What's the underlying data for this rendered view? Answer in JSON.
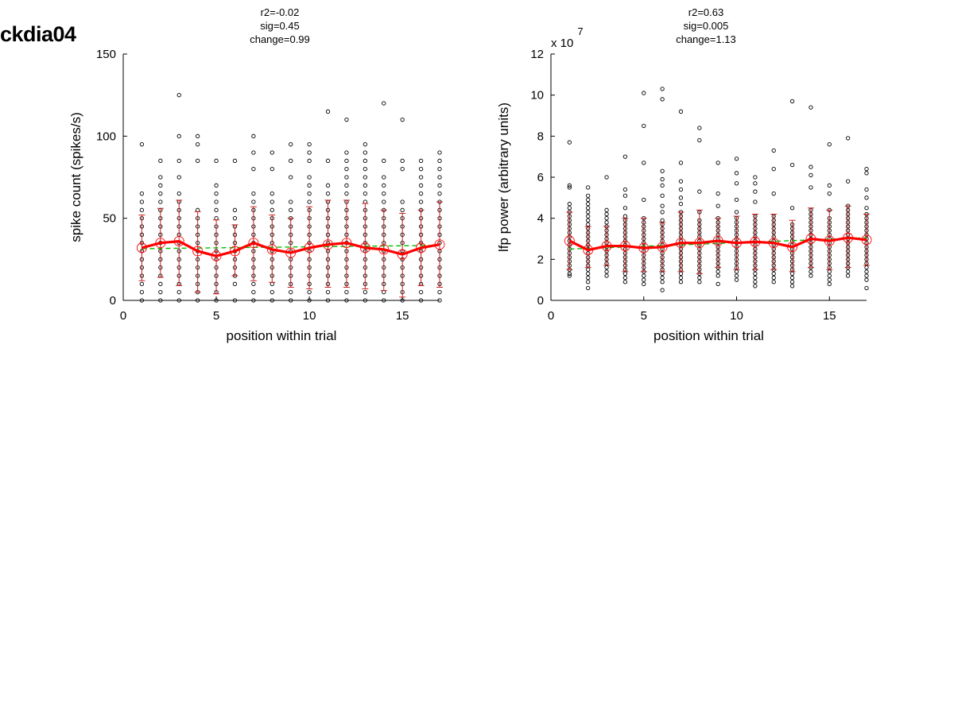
{
  "figure_title": "ckdia04",
  "chart_data": [
    {
      "type": "scatter",
      "stats": [
        "r2=-0.02",
        "sig=0.45",
        "change=0.99"
      ],
      "xlabel": "position within trial",
      "ylabel": "spike count (spikes/s)",
      "exponent_label": "",
      "xlim": [
        0,
        17
      ],
      "ylim": [
        0,
        150
      ],
      "xticks": [
        0,
        5,
        10,
        15
      ],
      "yticks": [
        0,
        50,
        100,
        150
      ],
      "grid": false,
      "colors": {
        "points": "#000000",
        "mean": "#ff0000",
        "errorbar": "#c81e1e",
        "fit": "#00c000"
      },
      "x": [
        1,
        2,
        3,
        4,
        5,
        6,
        7,
        8,
        9,
        10,
        11,
        12,
        13,
        14,
        15,
        16,
        17
      ],
      "mean": [
        32,
        35,
        36,
        30,
        27,
        30,
        35,
        31,
        29,
        32,
        34,
        35,
        32,
        31,
        28,
        32,
        34
      ],
      "sd_low": [
        12,
        14,
        9,
        5,
        4,
        15,
        12,
        11,
        8,
        7,
        8,
        8,
        7,
        6,
        2,
        9,
        8
      ],
      "sd_high": [
        52,
        56,
        61,
        54,
        49,
        46,
        57,
        52,
        50,
        57,
        61,
        61,
        59,
        55,
        53,
        55,
        60
      ],
      "fit": {
        "start": 31.5,
        "end": 33.5
      },
      "points": [
        [
          1,
          [
            0,
            5,
            10,
            15,
            20,
            25,
            30,
            35,
            40,
            45,
            50,
            55,
            60,
            65,
            95
          ]
        ],
        [
          2,
          [
            0,
            5,
            10,
            15,
            20,
            25,
            30,
            35,
            40,
            45,
            50,
            55,
            60,
            65,
            70,
            75,
            85
          ]
        ],
        [
          3,
          [
            0,
            5,
            10,
            15,
            20,
            25,
            30,
            35,
            40,
            45,
            50,
            55,
            60,
            65,
            75,
            85,
            100,
            125
          ]
        ],
        [
          4,
          [
            0,
            5,
            10,
            15,
            20,
            25,
            30,
            35,
            40,
            45,
            50,
            55,
            85,
            95,
            100
          ]
        ],
        [
          5,
          [
            0,
            5,
            10,
            15,
            20,
            25,
            30,
            35,
            40,
            45,
            50,
            55,
            60,
            65,
            70,
            85
          ]
        ],
        [
          6,
          [
            0,
            10,
            15,
            20,
            25,
            30,
            35,
            40,
            45,
            50,
            55,
            85
          ]
        ],
        [
          7,
          [
            0,
            5,
            10,
            15,
            20,
            25,
            30,
            35,
            40,
            45,
            50,
            55,
            60,
            65,
            80,
            90,
            100
          ]
        ],
        [
          8,
          [
            0,
            5,
            10,
            15,
            20,
            25,
            30,
            35,
            40,
            45,
            50,
            55,
            60,
            65,
            80,
            90
          ]
        ],
        [
          9,
          [
            0,
            5,
            10,
            15,
            20,
            25,
            30,
            35,
            40,
            45,
            50,
            55,
            60,
            75,
            85,
            95
          ]
        ],
        [
          10,
          [
            0,
            5,
            10,
            15,
            20,
            25,
            30,
            35,
            40,
            45,
            50,
            55,
            60,
            65,
            70,
            75,
            85,
            90,
            95
          ]
        ],
        [
          11,
          [
            0,
            5,
            10,
            15,
            20,
            25,
            30,
            35,
            40,
            45,
            50,
            55,
            60,
            65,
            70,
            85,
            115
          ]
        ],
        [
          12,
          [
            0,
            5,
            10,
            15,
            20,
            25,
            30,
            35,
            40,
            45,
            50,
            55,
            60,
            65,
            70,
            75,
            80,
            85,
            90,
            110
          ]
        ],
        [
          13,
          [
            0,
            5,
            10,
            15,
            20,
            25,
            30,
            35,
            40,
            45,
            50,
            55,
            60,
            65,
            70,
            75,
            80,
            85,
            90,
            95
          ]
        ],
        [
          14,
          [
            0,
            5,
            10,
            15,
            20,
            25,
            30,
            35,
            40,
            45,
            50,
            55,
            60,
            65,
            70,
            75,
            85,
            120
          ]
        ],
        [
          15,
          [
            0,
            5,
            10,
            15,
            20,
            25,
            30,
            35,
            40,
            45,
            50,
            55,
            60,
            80,
            85,
            110
          ]
        ],
        [
          16,
          [
            0,
            5,
            10,
            15,
            20,
            25,
            30,
            35,
            40,
            45,
            50,
            55,
            60,
            65,
            70,
            75,
            80,
            85
          ]
        ],
        [
          17,
          [
            0,
            5,
            10,
            15,
            20,
            25,
            30,
            35,
            40,
            45,
            50,
            55,
            60,
            65,
            70,
            75,
            80,
            85,
            90
          ]
        ]
      ]
    },
    {
      "type": "scatter",
      "stats": [
        "r2=0.63",
        "sig=0.005",
        "change=1.13"
      ],
      "xlabel": "position within trial",
      "ylabel": "lfp power (arbitrary units)",
      "exponent_label": "x 10",
      "exponent_sup": "7",
      "xlim": [
        0,
        17
      ],
      "ylim": [
        0,
        12
      ],
      "xticks": [
        0,
        5,
        10,
        15
      ],
      "yticks": [
        0,
        2,
        4,
        6,
        8,
        10,
        12
      ],
      "grid": false,
      "colors": {
        "points": "#000000",
        "mean": "#ff0000",
        "errorbar": "#c81e1e",
        "fit": "#00c000"
      },
      "x": [
        1,
        2,
        3,
        4,
        5,
        6,
        7,
        8,
        9,
        10,
        11,
        12,
        13,
        14,
        15,
        16,
        17
      ],
      "mean": [
        2.9,
        2.45,
        2.65,
        2.65,
        2.55,
        2.6,
        2.8,
        2.8,
        2.9,
        2.8,
        2.85,
        2.8,
        2.6,
        3.0,
        2.9,
        3.05,
        2.95
      ],
      "sd_low": [
        1.5,
        1.6,
        1.7,
        1.4,
        1.4,
        1.4,
        1.4,
        1.3,
        1.6,
        1.5,
        1.5,
        1.5,
        1.4,
        1.6,
        1.5,
        1.6,
        1.7
      ],
      "sd_high": [
        4.3,
        3.6,
        3.6,
        4.0,
        4.0,
        3.8,
        4.3,
        4.4,
        4.0,
        4.1,
        4.2,
        4.2,
        3.9,
        4.5,
        4.4,
        4.6,
        4.2
      ],
      "fit": {
        "start": 2.5,
        "end": 3.05
      },
      "points": [
        [
          1,
          [
            1.2,
            1.3,
            1.5,
            1.7,
            1.9,
            2.1,
            2.3,
            2.5,
            2.7,
            2.9,
            3.1,
            3.3,
            3.5,
            3.7,
            3.9,
            4.1,
            4.3,
            4.5,
            4.7,
            5.5,
            5.6,
            7.7
          ]
        ],
        [
          2,
          [
            0.6,
            0.9,
            1.1,
            1.3,
            1.5,
            1.7,
            1.9,
            2.1,
            2.3,
            2.5,
            2.7,
            2.9,
            3.1,
            3.3,
            3.5,
            3.7,
            3.9,
            4.1,
            4.3,
            4.5,
            4.7,
            4.9,
            5.1,
            5.5
          ]
        ],
        [
          3,
          [
            1.2,
            1.4,
            1.6,
            1.8,
            2.0,
            2.2,
            2.4,
            2.6,
            2.8,
            3.0,
            3.2,
            3.4,
            3.6,
            3.8,
            4.0,
            4.2,
            4.4,
            6.0
          ]
        ],
        [
          4,
          [
            0.9,
            1.1,
            1.3,
            1.5,
            1.7,
            1.9,
            2.1,
            2.3,
            2.5,
            2.7,
            2.9,
            3.1,
            3.3,
            3.5,
            3.7,
            3.9,
            4.1,
            4.5,
            5.1,
            5.4,
            7.0
          ]
        ],
        [
          5,
          [
            0.8,
            1.0,
            1.2,
            1.4,
            1.6,
            1.8,
            2.0,
            2.2,
            2.4,
            2.6,
            2.8,
            3.0,
            3.2,
            3.4,
            3.6,
            3.8,
            4.0,
            4.9,
            6.7,
            8.5,
            10.1
          ]
        ],
        [
          6,
          [
            0.5,
            0.9,
            1.1,
            1.3,
            1.5,
            1.7,
            1.9,
            2.1,
            2.3,
            2.5,
            2.7,
            2.9,
            3.1,
            3.3,
            3.5,
            3.7,
            3.9,
            4.3,
            4.6,
            5.1,
            5.6,
            5.9,
            6.3,
            9.8,
            10.3
          ]
        ],
        [
          7,
          [
            0.9,
            1.1,
            1.3,
            1.5,
            1.7,
            1.9,
            2.1,
            2.3,
            2.5,
            2.7,
            2.9,
            3.1,
            3.3,
            3.5,
            3.7,
            3.9,
            4.1,
            4.3,
            4.7,
            5.0,
            5.4,
            5.8,
            6.7,
            9.2
          ]
        ],
        [
          8,
          [
            0.9,
            1.1,
            1.3,
            1.5,
            1.7,
            1.9,
            2.1,
            2.3,
            2.5,
            2.7,
            2.9,
            3.1,
            3.3,
            3.5,
            3.7,
            3.9,
            4.3,
            5.3,
            7.8,
            8.4
          ]
        ],
        [
          9,
          [
            0.8,
            1.2,
            1.4,
            1.6,
            1.8,
            2.0,
            2.2,
            2.4,
            2.6,
            2.8,
            3.0,
            3.2,
            3.4,
            3.6,
            3.8,
            4.0,
            4.6,
            5.2,
            6.7
          ]
        ],
        [
          10,
          [
            1.0,
            1.2,
            1.4,
            1.6,
            1.8,
            2.0,
            2.2,
            2.4,
            2.6,
            2.8,
            3.0,
            3.2,
            3.4,
            3.6,
            3.8,
            4.0,
            4.3,
            4.9,
            5.7,
            6.2,
            6.9
          ]
        ],
        [
          11,
          [
            0.7,
            0.9,
            1.1,
            1.3,
            1.5,
            1.7,
            1.9,
            2.1,
            2.3,
            2.5,
            2.7,
            2.9,
            3.1,
            3.3,
            3.5,
            3.7,
            3.9,
            4.1,
            4.8,
            5.3,
            5.7,
            6.0
          ]
        ],
        [
          12,
          [
            0.9,
            1.1,
            1.3,
            1.5,
            1.7,
            1.9,
            2.1,
            2.3,
            2.5,
            2.7,
            2.9,
            3.1,
            3.3,
            3.5,
            3.7,
            3.9,
            4.1,
            5.2,
            6.4,
            7.3
          ]
        ],
        [
          13,
          [
            0.7,
            0.9,
            1.1,
            1.3,
            1.5,
            1.7,
            1.9,
            2.1,
            2.3,
            2.5,
            2.7,
            2.9,
            3.1,
            3.3,
            3.5,
            3.7,
            4.5,
            6.6,
            9.7
          ]
        ],
        [
          14,
          [
            1.2,
            1.4,
            1.6,
            1.8,
            2.0,
            2.2,
            2.4,
            2.6,
            2.8,
            3.0,
            3.2,
            3.4,
            3.6,
            3.8,
            4.0,
            4.2,
            4.4,
            5.5,
            6.1,
            6.5,
            9.4
          ]
        ],
        [
          15,
          [
            0.8,
            1.0,
            1.2,
            1.4,
            1.6,
            1.8,
            2.0,
            2.2,
            2.4,
            2.6,
            2.8,
            3.0,
            3.2,
            3.4,
            3.6,
            3.8,
            4.0,
            4.4,
            5.2,
            5.6,
            7.6
          ]
        ],
        [
          16,
          [
            1.2,
            1.4,
            1.6,
            1.8,
            2.0,
            2.2,
            2.4,
            2.6,
            2.8,
            3.0,
            3.2,
            3.4,
            3.6,
            3.8,
            4.0,
            4.2,
            4.4,
            4.6,
            5.8,
            7.9
          ]
        ],
        [
          17,
          [
            0.6,
            1.0,
            1.2,
            1.4,
            1.6,
            1.8,
            2.0,
            2.2,
            2.4,
            2.6,
            2.8,
            3.0,
            3.2,
            3.4,
            3.6,
            3.8,
            4.0,
            4.2,
            4.5,
            5.0,
            5.4,
            6.2,
            6.4
          ]
        ]
      ]
    }
  ]
}
